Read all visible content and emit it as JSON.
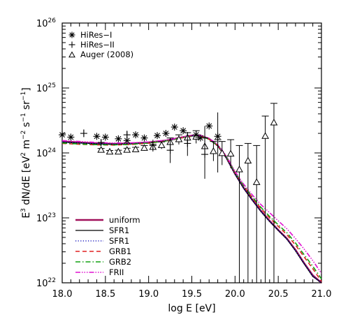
{
  "chart_data": {
    "type": "line",
    "title": "",
    "xlabel": "log E [eV]",
    "ylabel": "E3 dN/dE [eV2 m-2 s-1 sr-1]",
    "x_scale": "linear",
    "y_scale": "log",
    "xlim": [
      18.0,
      21.0
    ],
    "ylim": [
      1e+22,
      1e+26
    ],
    "grid": false,
    "x_ticks": [
      {
        "v": 18.0,
        "label": "18.0"
      },
      {
        "v": 18.5,
        "label": "18.5"
      },
      {
        "v": 19.0,
        "label": "19.0"
      },
      {
        "v": 19.5,
        "label": "19.5"
      },
      {
        "v": 20.0,
        "label": "20.0"
      },
      {
        "v": 20.5,
        "label": "20.5"
      },
      {
        "v": 21.0,
        "label": "21.0"
      }
    ],
    "y_ticks": [
      {
        "exp": 22,
        "base": "10",
        "sup": "22"
      },
      {
        "exp": 23,
        "base": "10",
        "sup": "23"
      },
      {
        "exp": 24,
        "base": "10",
        "sup": "24"
      },
      {
        "exp": 25,
        "base": "10",
        "sup": "25"
      },
      {
        "exp": 26,
        "base": "10",
        "sup": "26"
      }
    ],
    "markers_legend": {
      "placement": "top-left",
      "entries": [
        {
          "marker": "asterisk",
          "label": "HiRes−I"
        },
        {
          "marker": "plus",
          "label": "HiRes−II"
        },
        {
          "marker": "triangle",
          "label": "Auger (2008)"
        }
      ]
    },
    "lines_legend": {
      "placement": "bottom-left",
      "entries": [
        {
          "label": "uniform",
          "color": "#a0105a",
          "dash": "",
          "width": 2.6
        },
        {
          "label": "SFR1",
          "color": "#000000",
          "dash": "",
          "width": 1.3
        },
        {
          "label": "SFR1",
          "color": "#2020c0",
          "dash": "1.2,2.4",
          "width": 1.6
        },
        {
          "label": "GRB1",
          "color": "#e02020",
          "dash": "6,4",
          "width": 1.6
        },
        {
          "label": "GRB2",
          "color": "#10a010",
          "dash": "7,3,1.5,3",
          "width": 1.6
        },
        {
          "label": "FRII",
          "color": "#e010d0",
          "dash": "7,2,1.5,2,1.5,2,1.5,2",
          "width": 1.6
        }
      ]
    },
    "series": [
      {
        "name": "uniform",
        "x": [
          18.0,
          18.2,
          18.4,
          18.6,
          18.8,
          19.0,
          19.2,
          19.4,
          19.5,
          19.6,
          19.7,
          19.8,
          19.9,
          20.0,
          20.1,
          20.2,
          20.3,
          20.4,
          20.5,
          20.6,
          20.7,
          20.8,
          20.9,
          21.0
        ],
        "y": [
          1.5e+24,
          1.45e+24,
          1.4e+24,
          1.38e+24,
          1.4e+24,
          1.45e+24,
          1.55e+24,
          1.75e+24,
          1.85e+24,
          1.85e+24,
          1.65e+24,
          1.3e+24,
          8.5e+23,
          4.8e+23,
          2.9e+23,
          1.9e+23,
          1.28e+23,
          9e+22,
          6.5e+22,
          4.8e+22,
          3.2e+22,
          2e+22,
          1.3e+22,
          8e+21
        ]
      },
      {
        "name": "SFR1",
        "x": [
          18.0,
          18.2,
          18.4,
          18.6,
          18.8,
          19.0,
          19.2,
          19.4,
          19.5,
          19.6,
          19.7,
          19.8,
          19.9,
          20.0,
          20.1,
          20.2,
          20.3,
          20.4,
          20.5,
          20.6,
          20.7,
          20.8,
          20.9,
          21.0
        ],
        "y": [
          1.46e+24,
          1.42e+24,
          1.38e+24,
          1.36e+24,
          1.38e+24,
          1.43e+24,
          1.53e+24,
          1.72e+24,
          1.82e+24,
          1.82e+24,
          1.62e+24,
          1.28e+24,
          8.3e+23,
          4.7e+23,
          2.85e+23,
          1.86e+23,
          1.25e+23,
          8.8e+22,
          6.4e+22,
          4.7e+22,
          3.1e+22,
          1.95e+22,
          1.25e+22,
          7.8e+21
        ]
      },
      {
        "name": "SFR1",
        "x": [
          18.0,
          18.2,
          18.4,
          18.6,
          18.8,
          19.0,
          19.2,
          19.4,
          19.5,
          19.6,
          19.7,
          19.8,
          19.9,
          20.0,
          20.1,
          20.2,
          20.3,
          20.4,
          20.5,
          20.6,
          20.7,
          20.8,
          20.9,
          21.0
        ],
        "y": [
          1.48e+24,
          1.43e+24,
          1.39e+24,
          1.37e+24,
          1.39e+24,
          1.44e+24,
          1.54e+24,
          1.73e+24,
          1.83e+24,
          1.83e+24,
          1.63e+24,
          1.29e+24,
          8.4e+23,
          4.75e+23,
          2.88e+23,
          1.88e+23,
          1.26e+23,
          8.9e+22,
          6.45e+22,
          4.75e+22,
          3.15e+22,
          1.98e+22,
          1.28e+22,
          7.9e+21
        ]
      },
      {
        "name": "GRB1",
        "x": [
          18.0,
          18.2,
          18.4,
          18.6,
          18.8,
          19.0,
          19.2,
          19.4,
          19.5,
          19.6,
          19.7,
          19.8,
          19.9,
          20.0,
          20.1,
          20.2,
          20.3,
          20.4,
          20.5,
          20.6,
          20.7,
          20.8,
          20.9,
          21.0
        ],
        "y": [
          1.4e+24,
          1.36e+24,
          1.33e+24,
          1.32e+24,
          1.35e+24,
          1.41e+24,
          1.52e+24,
          1.72e+24,
          1.8e+24,
          1.8e+24,
          1.62e+24,
          1.3e+24,
          8.7e+23,
          5e+23,
          3.1e+23,
          2.05e+23,
          1.4e+23,
          1e+23,
          7.4e+22,
          5.5e+22,
          3.8e+22,
          2.5e+22,
          1.65e+22,
          1.05e+22
        ]
      },
      {
        "name": "GRB2",
        "x": [
          18.0,
          18.2,
          18.4,
          18.6,
          18.8,
          19.0,
          19.2,
          19.4,
          19.5,
          19.6,
          19.7,
          19.8,
          19.9,
          20.0,
          20.1,
          20.2,
          20.3,
          20.4,
          20.5,
          20.6,
          20.7,
          20.8,
          20.9,
          21.0
        ],
        "y": [
          1.42e+24,
          1.37e+24,
          1.34e+24,
          1.33e+24,
          1.36e+24,
          1.42e+24,
          1.53e+24,
          1.73e+24,
          1.81e+24,
          1.81e+24,
          1.63e+24,
          1.31e+24,
          8.8e+23,
          5.05e+23,
          3.15e+23,
          2.1e+23,
          1.45e+23,
          1.05e+23,
          7.8e+22,
          5.9e+22,
          4.1e+22,
          2.7e+22,
          1.8e+22,
          1.15e+22
        ]
      },
      {
        "name": "FRII",
        "x": [
          18.0,
          18.2,
          18.4,
          18.6,
          18.8,
          19.0,
          19.2,
          19.4,
          19.5,
          19.6,
          19.7,
          19.8,
          19.9,
          20.0,
          20.1,
          20.2,
          20.3,
          20.4,
          20.5,
          20.6,
          20.7,
          20.8,
          20.9,
          21.0
        ],
        "y": [
          1.55e+24,
          1.5e+24,
          1.45e+24,
          1.42e+24,
          1.43e+24,
          1.48e+24,
          1.57e+24,
          1.76e+24,
          1.86e+24,
          1.86e+24,
          1.68e+24,
          1.35e+24,
          9e+23,
          5.2e+23,
          3.3e+23,
          2.25e+23,
          1.6e+23,
          1.2e+23,
          9e+22,
          6.8e+22,
          4.8e+22,
          3.3e+22,
          2.2e+22,
          1.4e+22
        ]
      }
    ],
    "data_points": {
      "hires1": [
        {
          "x": 18.0,
          "y": 1.9e+24
        },
        {
          "x": 18.1,
          "y": 1.75e+24
        },
        {
          "x": 18.4,
          "y": 1.8e+24
        },
        {
          "x": 18.5,
          "y": 1.75e+24
        },
        {
          "x": 18.65,
          "y": 1.65e+24
        },
        {
          "x": 18.75,
          "y": 1.55e+24
        },
        {
          "x": 18.85,
          "y": 1.9e+24
        },
        {
          "x": 18.95,
          "y": 1.7e+24
        },
        {
          "x": 19.1,
          "y": 1.85e+24
        },
        {
          "x": 19.2,
          "y": 2e+24
        },
        {
          "x": 19.3,
          "y": 2.5e+24
        },
        {
          "x": 19.4,
          "y": 2.2e+24
        },
        {
          "x": 19.55,
          "y": 1.9e+24
        },
        {
          "x": 19.6,
          "y": 1.7e+24
        },
        {
          "x": 19.7,
          "y": 2.6e+24
        },
        {
          "x": 19.8,
          "y": 1.8e+24
        }
      ],
      "hires2": [
        {
          "x": 18.25,
          "y": 2e+24,
          "lo": 1.75e+24,
          "hi": 2.3e+24
        },
        {
          "x": 18.45,
          "y": 1.45e+24,
          "lo": 1.3e+24,
          "hi": 1.6e+24
        },
        {
          "x": 18.75,
          "y": 1.9e+24,
          "lo": 1.65e+24,
          "hi": 2.2e+24
        },
        {
          "x": 19.05,
          "y": 1.3e+24,
          "lo": 1.05e+24,
          "hi": 1.6e+24
        },
        {
          "x": 19.25,
          "y": 1.1e+24,
          "lo": 7e+23,
          "hi": 1.7e+24
        },
        {
          "x": 19.45,
          "y": 1.4e+24,
          "lo": 9e+23,
          "hi": 2.1e+24
        },
        {
          "x": 19.65,
          "y": 9.5e+23,
          "lo": 4e+23,
          "hi": 2.6e+24
        },
        {
          "x": 19.8,
          "y": 1.6e+24,
          "lo": 5e+23,
          "hi": 4.2e+24
        }
      ],
      "auger": [
        {
          "x": 18.45,
          "y": 1.1e+24,
          "lo": 1.03e+24,
          "hi": 1.17e+24
        },
        {
          "x": 18.55,
          "y": 1.03e+24,
          "lo": 9.7e+23,
          "hi": 1.09e+24
        },
        {
          "x": 18.65,
          "y": 1.03e+24,
          "lo": 9.6e+23,
          "hi": 1.1e+24
        },
        {
          "x": 18.75,
          "y": 1.1e+24,
          "lo": 1.02e+24,
          "hi": 1.18e+24
        },
        {
          "x": 18.85,
          "y": 1.12e+24,
          "lo": 1.03e+24,
          "hi": 1.22e+24
        },
        {
          "x": 18.95,
          "y": 1.18e+24,
          "lo": 1.08e+24,
          "hi": 1.3e+24
        },
        {
          "x": 19.05,
          "y": 1.22e+24,
          "lo": 1.1e+24,
          "hi": 1.36e+24
        },
        {
          "x": 19.15,
          "y": 1.3e+24,
          "lo": 1.15e+24,
          "hi": 1.48e+24
        },
        {
          "x": 19.25,
          "y": 1.45e+24,
          "lo": 1.25e+24,
          "hi": 1.7e+24
        },
        {
          "x": 19.35,
          "y": 1.6e+24,
          "lo": 1.35e+24,
          "hi": 1.9e+24
        },
        {
          "x": 19.45,
          "y": 1.7e+24,
          "lo": 1.4e+24,
          "hi": 2.05e+24
        },
        {
          "x": 19.55,
          "y": 1.75e+24,
          "lo": 1.4e+24,
          "hi": 2.2e+24
        },
        {
          "x": 19.65,
          "y": 1.25e+24,
          "lo": 9.5e+23,
          "hi": 1.7e+24
        },
        {
          "x": 19.75,
          "y": 1.05e+24,
          "lo": 7.5e+23,
          "hi": 1.5e+24
        },
        {
          "x": 19.85,
          "y": 9.8e+23,
          "lo": 6.5e+23,
          "hi": 1.5e+24
        },
        {
          "x": 19.95,
          "y": 9.6e+23,
          "lo": 5.8e+23,
          "hi": 1.6e+24
        },
        {
          "x": 20.05,
          "y": 5.5e+23,
          "lo": 1e+22,
          "hi": 1.3e+24
        },
        {
          "x": 20.15,
          "y": 7.5e+23,
          "lo": 1e+22,
          "hi": 1.4e+24
        },
        {
          "x": 20.25,
          "y": 3.5e+23,
          "lo": 1e+22,
          "hi": 1.3e+24
        },
        {
          "x": 20.35,
          "y": 1.8e+24,
          "lo": 1e+22,
          "hi": 3.7e+24
        },
        {
          "x": 20.45,
          "y": 2.9e+24,
          "lo": 1e+22,
          "hi": 5.8e+24
        }
      ]
    }
  }
}
